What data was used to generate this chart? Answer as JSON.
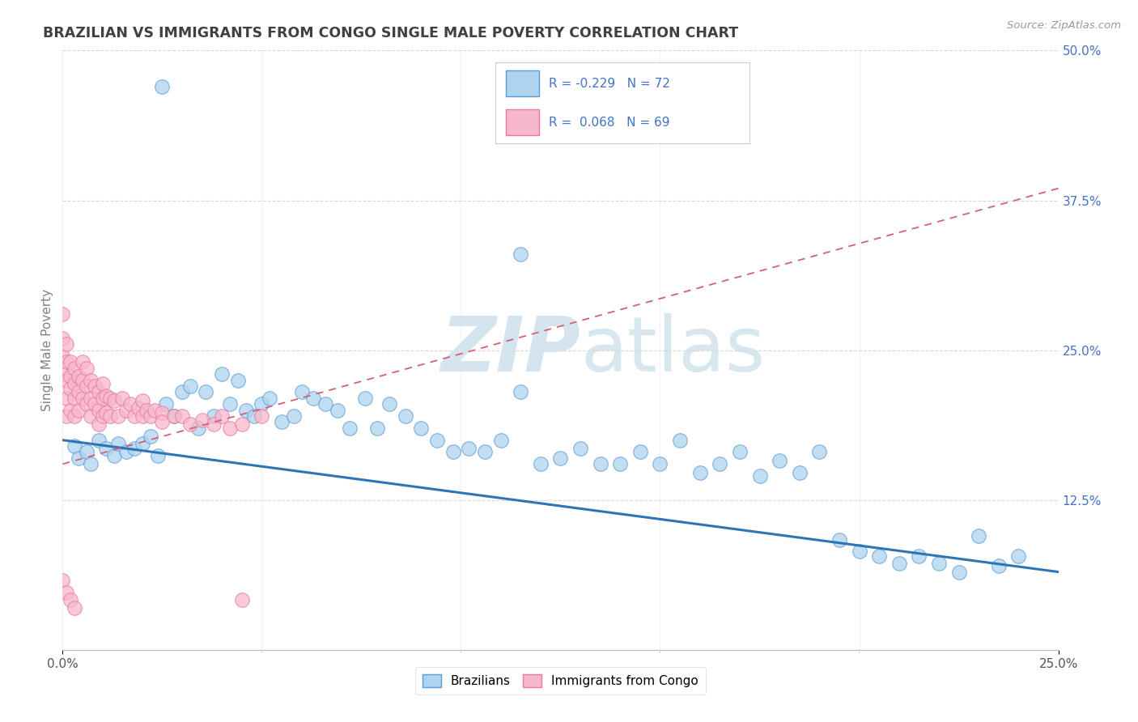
{
  "title": "BRAZILIAN VS IMMIGRANTS FROM CONGO SINGLE MALE POVERTY CORRELATION CHART",
  "source_text": "Source: ZipAtlas.com",
  "ylabel": "Single Male Poverty",
  "r_blue": -0.229,
  "n_blue": 72,
  "r_pink": 0.068,
  "n_pink": 69,
  "x_min": 0.0,
  "x_max": 0.25,
  "y_min": 0.0,
  "y_max": 0.5,
  "y_ticks_right": [
    0.125,
    0.25,
    0.375,
    0.5
  ],
  "y_tick_labels_right": [
    "12.5%",
    "25.0%",
    "37.5%",
    "50.0%"
  ],
  "legend_labels": [
    "Brazilians",
    "Immigrants from Congo"
  ],
  "color_blue_fill": "#aed4f0",
  "color_pink_fill": "#f7b8cb",
  "color_blue_edge": "#5b9bd5",
  "color_pink_edge": "#e87a9a",
  "color_blue_line": "#2e75b6",
  "color_pink_line": "#d45f7a",
  "color_dashed_line": "#d45f7a",
  "watermark_color": "#d5e5f0",
  "background_color": "#ffffff",
  "grid_color": "#d8d8d8",
  "title_color": "#404040",
  "axis_label_color": "#808080",
  "tick_color": "#555555",
  "legend_color": "#4472c4",
  "blue_line_y0": 0.175,
  "blue_line_y1": 0.065,
  "pink_line_y0": 0.155,
  "pink_line_y1": 0.385,
  "blue_points_x": [
    0.025,
    0.115,
    0.003,
    0.004,
    0.006,
    0.007,
    0.009,
    0.011,
    0.013,
    0.014,
    0.016,
    0.018,
    0.02,
    0.022,
    0.024,
    0.026,
    0.028,
    0.03,
    0.032,
    0.034,
    0.036,
    0.038,
    0.04,
    0.042,
    0.044,
    0.046,
    0.048,
    0.05,
    0.052,
    0.055,
    0.058,
    0.06,
    0.063,
    0.066,
    0.069,
    0.072,
    0.076,
    0.079,
    0.082,
    0.086,
    0.09,
    0.094,
    0.098,
    0.102,
    0.106,
    0.11,
    0.115,
    0.12,
    0.125,
    0.13,
    0.135,
    0.14,
    0.145,
    0.15,
    0.155,
    0.16,
    0.165,
    0.17,
    0.175,
    0.18,
    0.185,
    0.19,
    0.195,
    0.2,
    0.205,
    0.21,
    0.215,
    0.22,
    0.225,
    0.23,
    0.235,
    0.24
  ],
  "blue_points_y": [
    0.47,
    0.33,
    0.17,
    0.16,
    0.165,
    0.155,
    0.175,
    0.168,
    0.162,
    0.172,
    0.165,
    0.168,
    0.172,
    0.178,
    0.162,
    0.205,
    0.195,
    0.215,
    0.22,
    0.185,
    0.215,
    0.195,
    0.23,
    0.205,
    0.225,
    0.2,
    0.195,
    0.205,
    0.21,
    0.19,
    0.195,
    0.215,
    0.21,
    0.205,
    0.2,
    0.185,
    0.21,
    0.185,
    0.205,
    0.195,
    0.185,
    0.175,
    0.165,
    0.168,
    0.165,
    0.175,
    0.215,
    0.155,
    0.16,
    0.168,
    0.155,
    0.155,
    0.165,
    0.155,
    0.175,
    0.148,
    0.155,
    0.165,
    0.145,
    0.158,
    0.148,
    0.165,
    0.092,
    0.082,
    0.078,
    0.072,
    0.078,
    0.072,
    0.065,
    0.095,
    0.07,
    0.078
  ],
  "pink_points_x": [
    0.0,
    0.0,
    0.0,
    0.0,
    0.001,
    0.001,
    0.001,
    0.001,
    0.001,
    0.002,
    0.002,
    0.002,
    0.002,
    0.003,
    0.003,
    0.003,
    0.003,
    0.004,
    0.004,
    0.004,
    0.005,
    0.005,
    0.005,
    0.006,
    0.006,
    0.006,
    0.007,
    0.007,
    0.007,
    0.008,
    0.008,
    0.009,
    0.009,
    0.009,
    0.01,
    0.01,
    0.01,
    0.011,
    0.011,
    0.012,
    0.012,
    0.013,
    0.014,
    0.015,
    0.016,
    0.017,
    0.018,
    0.019,
    0.02,
    0.02,
    0.021,
    0.022,
    0.023,
    0.025,
    0.025,
    0.028,
    0.03,
    0.032,
    0.035,
    0.038,
    0.04,
    0.042,
    0.045,
    0.0,
    0.001,
    0.002,
    0.003,
    0.05,
    0.045
  ],
  "pink_points_y": [
    0.28,
    0.26,
    0.245,
    0.23,
    0.255,
    0.24,
    0.225,
    0.21,
    0.195,
    0.24,
    0.228,
    0.218,
    0.2,
    0.235,
    0.222,
    0.21,
    0.195,
    0.228,
    0.215,
    0.2,
    0.24,
    0.225,
    0.21,
    0.235,
    0.22,
    0.205,
    0.225,
    0.21,
    0.195,
    0.22,
    0.205,
    0.215,
    0.2,
    0.188,
    0.222,
    0.21,
    0.195,
    0.212,
    0.198,
    0.21,
    0.195,
    0.208,
    0.195,
    0.21,
    0.2,
    0.205,
    0.195,
    0.202,
    0.208,
    0.195,
    0.2,
    0.195,
    0.2,
    0.198,
    0.19,
    0.195,
    0.195,
    0.188,
    0.192,
    0.188,
    0.195,
    0.185,
    0.188,
    0.058,
    0.048,
    0.042,
    0.035,
    0.195,
    0.042
  ]
}
